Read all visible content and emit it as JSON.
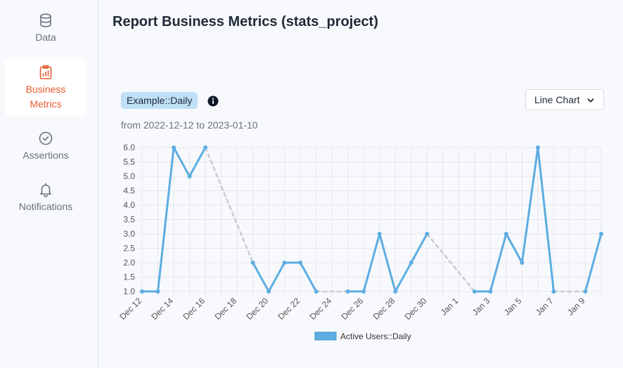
{
  "sidebar": {
    "items": [
      {
        "label": "Data",
        "icon": "database-icon"
      },
      {
        "label": "Business Metrics",
        "icon": "clipboard-chart-icon",
        "active": true
      },
      {
        "label": "Assertions",
        "icon": "check-circle-icon"
      },
      {
        "label": "Notifications",
        "icon": "bell-icon"
      }
    ]
  },
  "header": {
    "title": "Report Business Metrics (stats_project)"
  },
  "metric": {
    "tag": "Example::Daily",
    "range_prefix": "from",
    "range_start": "2022-12-12",
    "range_to": "to",
    "range_end": "2023-01-10"
  },
  "chart_type_select": {
    "value": "Line Chart"
  },
  "colors": {
    "accent": "#ea5a2d",
    "series": "#5dade2",
    "gap": "#cccccc",
    "tag_bg": "#bfe0f7"
  },
  "chart_data": {
    "type": "line",
    "x_dates": [
      "2022-12-12",
      "2022-12-13",
      "2022-12-14",
      "2022-12-15",
      "2022-12-16",
      "2022-12-17",
      "2022-12-18",
      "2022-12-19",
      "2022-12-20",
      "2022-12-21",
      "2022-12-22",
      "2022-12-23",
      "2022-12-24",
      "2022-12-25",
      "2022-12-26",
      "2022-12-27",
      "2022-12-28",
      "2022-12-29",
      "2022-12-30",
      "2022-12-31",
      "2023-01-01",
      "2023-01-02",
      "2023-01-03",
      "2023-01-04",
      "2023-01-05",
      "2023-01-06",
      "2023-01-07",
      "2023-01-08",
      "2023-01-09",
      "2023-01-10"
    ],
    "x_tick_labels": [
      "Dec 12",
      "Dec 14",
      "Dec 16",
      "Dec 18",
      "Dec 20",
      "Dec 22",
      "Dec 24",
      "Dec 26",
      "Dec 28",
      "Dec 30",
      "Jan 1",
      "Jan 3",
      "Jan 5",
      "Jan 7",
      "Jan 9"
    ],
    "series": [
      {
        "name": "Active Users::Daily",
        "values": [
          1,
          1,
          6,
          5,
          6,
          null,
          null,
          2,
          1,
          2,
          2,
          1,
          null,
          1,
          1,
          3,
          1,
          2,
          3,
          null,
          null,
          1,
          1,
          3,
          2,
          6,
          1,
          null,
          1,
          3
        ]
      }
    ],
    "ylim": [
      1,
      6
    ],
    "y_ticks": [
      "1.0",
      "1.5",
      "2.0",
      "2.5",
      "3.0",
      "3.5",
      "4.0",
      "4.5",
      "5.0",
      "5.5",
      "6.0"
    ],
    "grid": true,
    "span_gaps": true,
    "legend_position": "bottom"
  }
}
